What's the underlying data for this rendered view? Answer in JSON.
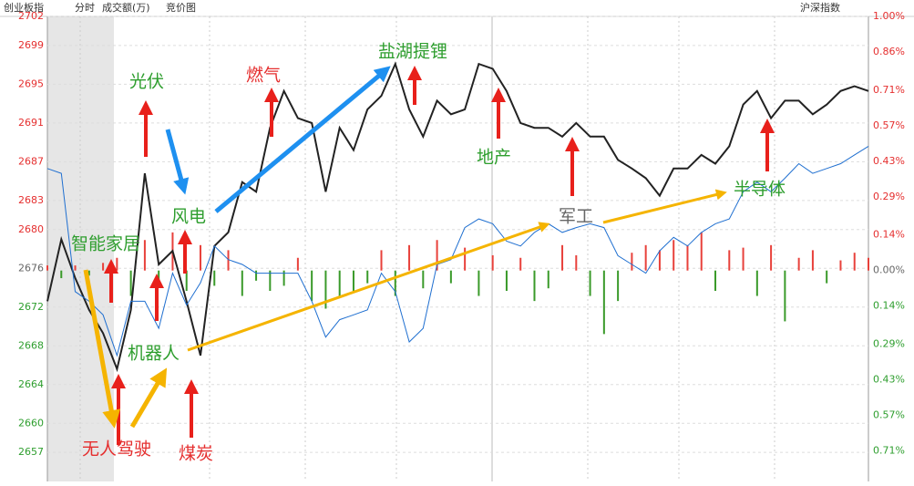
{
  "chart_data": {
    "type": "line",
    "header": [
      "创业板指",
      "分时",
      "成交额(万)",
      "竞价图"
    ],
    "market_label": "沪深指数",
    "ylim": [
      2654,
      2702
    ],
    "yticks": [
      2702,
      2699,
      2695,
      2691,
      2687,
      2683,
      2680,
      2676,
      2672,
      2668,
      2664,
      2660,
      2657
    ],
    "y2lim": [
      -0.83,
      1.0
    ],
    "y2ticks": [
      {
        "value": 1.0,
        "label": "1.00%"
      },
      {
        "value": 0.86,
        "label": "0.86%"
      },
      {
        "value": 0.71,
        "label": "0.71%"
      },
      {
        "value": 0.57,
        "label": "0.57%"
      },
      {
        "value": 0.43,
        "label": "0.43%"
      },
      {
        "value": 0.29,
        "label": "0.29%"
      },
      {
        "value": 0.14,
        "label": "0.14%"
      },
      {
        "value": 0,
        "label": "0.00%"
      },
      {
        "value": -0.14,
        "label": "0.14%"
      },
      {
        "value": -0.29,
        "label": "0.29%"
      },
      {
        "value": -0.43,
        "label": "0.43%"
      },
      {
        "value": -0.57,
        "label": "0.57%"
      },
      {
        "value": -0.71,
        "label": "0.71%"
      }
    ],
    "grid": true,
    "series": [
      {
        "color": "#222222",
        "values": [
          2672.6,
          2679.0,
          2675.0,
          2671.7,
          2669.3,
          2665.6,
          2671.7,
          2685.8,
          2676.4,
          2677.8,
          2672.6,
          2667.0,
          2678.3,
          2679.7,
          2684.9,
          2683.9,
          2690.5,
          2694.3,
          2691.5,
          2691.0,
          2683.9,
          2690.5,
          2688.2,
          2692.4,
          2693.8,
          2697.1,
          2692.4,
          2689.6,
          2693.3,
          2691.9,
          2692.4,
          2697.1,
          2696.6,
          2694.3,
          2691.0,
          2690.5,
          2690.5,
          2689.6,
          2691.0,
          2689.6,
          2689.6,
          2687.2,
          2686.3,
          2685.3,
          2683.5,
          2686.3,
          2686.3,
          2687.7,
          2686.8,
          2688.6,
          2692.9,
          2694.3,
          2691.5,
          2693.3,
          2693.3,
          2691.9,
          2692.9,
          2694.3,
          2694.8,
          2694.3
        ]
      },
      {
        "color": "#1f6fd0",
        "values": [
          2686.3,
          2685.8,
          2673.6,
          2672.6,
          2671.2,
          2667.0,
          2672.6,
          2672.6,
          2669.8,
          2675.5,
          2672.2,
          2674.5,
          2678.3,
          2676.9,
          2676.4,
          2675.5,
          2675.5,
          2675.5,
          2675.5,
          2672.6,
          2668.9,
          2670.7,
          2671.2,
          2671.7,
          2675.5,
          2673.6,
          2668.4,
          2669.8,
          2676.4,
          2676.9,
          2680.2,
          2681.1,
          2680.6,
          2678.8,
          2678.3,
          2679.7,
          2680.6,
          2679.7,
          2680.2,
          2680.6,
          2680.2,
          2677.3,
          2676.4,
          2675.5,
          2677.8,
          2679.2,
          2678.3,
          2679.7,
          2680.6,
          2681.1,
          2683.9,
          2684.9,
          2683.9,
          2685.3,
          2686.8,
          2685.8,
          2686.3,
          2686.8,
          2687.7,
          2688.6
        ]
      }
    ],
    "volume": {
      "axis": "y2",
      "up_color": "#e8413b",
      "down_color": "#3a9a2a",
      "values": [
        0.02,
        -0.03,
        0.02,
        -0.02,
        0.03,
        0.05,
        -0.1,
        0.12,
        -0.05,
        0.15,
        -0.08,
        0.1,
        -0.06,
        0.08,
        -0.1,
        -0.04,
        -0.08,
        -0.06,
        0.05,
        -0.12,
        -0.15,
        -0.1,
        -0.08,
        -0.05,
        0.08,
        -0.1,
        0.1,
        -0.07,
        0.12,
        -0.05,
        0.09,
        -0.1,
        0.06,
        -0.08,
        0.05,
        -0.12,
        -0.07,
        0.1,
        0.06,
        -0.1,
        -0.25,
        -0.12,
        0.07,
        0.1,
        0.08,
        0.12,
        0.1,
        0.15,
        -0.08,
        0.08,
        0.09,
        -0.1,
        0.1,
        -0.2,
        0.05,
        0.08,
        -0.05,
        0.04,
        0.07,
        0.05
      ]
    },
    "annotations": [
      "光伏",
      "风电",
      "燃气",
      "盐湖提锂",
      "地产",
      "军工",
      "半导体",
      "智能家居",
      "机器人",
      "无人驾驶",
      "煤炭"
    ]
  }
}
